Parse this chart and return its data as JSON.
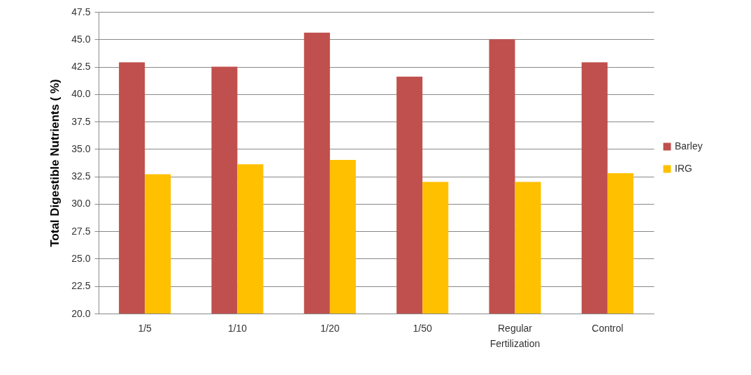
{
  "chart_data": {
    "type": "bar",
    "ylabel": "Total Digestible Nutrients ( %)",
    "categories": [
      "1/5",
      "1/10",
      "1/20",
      "1/50",
      "Regular Fertilization",
      "Control"
    ],
    "series": [
      {
        "name": "Barley",
        "color": "#c0504d",
        "values": [
          42.9,
          42.5,
          45.6,
          41.6,
          45.0,
          42.9
        ]
      },
      {
        "name": "IRG",
        "color": "#ffc000",
        "values": [
          32.7,
          33.6,
          34.0,
          32.0,
          32.0,
          32.8
        ]
      }
    ],
    "ylim": [
      20,
      47.5
    ],
    "yticks": [
      {
        "value": 20,
        "label": "20.0"
      },
      {
        "value": 22.5,
        "label": "22.5"
      },
      {
        "value": 25,
        "label": "25.0"
      },
      {
        "value": 27.5,
        "label": "27.5"
      },
      {
        "value": 30,
        "label": "30.0"
      },
      {
        "value": 32.5,
        "label": "32.5"
      },
      {
        "value": 35,
        "label": "35.0"
      },
      {
        "value": 37.5,
        "label": "37.5"
      },
      {
        "value": 40,
        "label": "40.0"
      },
      {
        "value": 42.5,
        "label": "42.5"
      },
      {
        "value": 45,
        "label": "45.0"
      },
      {
        "value": 47.5,
        "label": "47.5"
      }
    ],
    "grid": "y",
    "legend": "right"
  }
}
